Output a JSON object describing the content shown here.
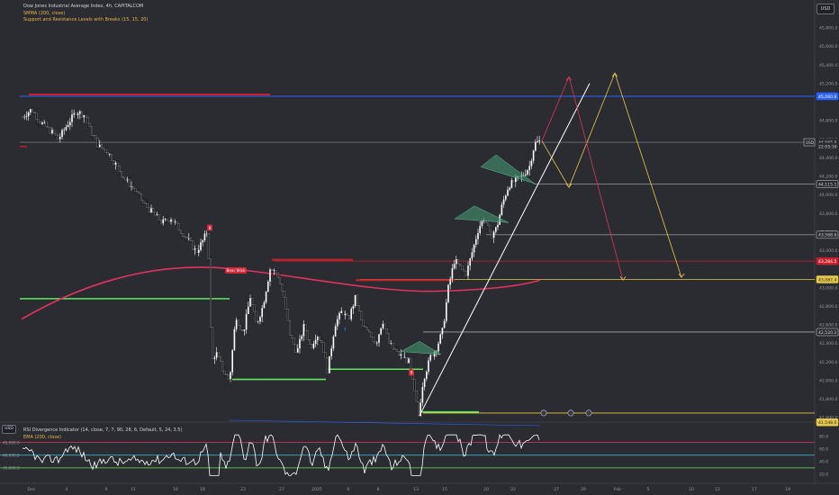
{
  "legend": {
    "symbol": "Dow Jones Industrial Average Index, 4h, CAPITALCOM",
    "indicator_1": "SMMA (200, close)",
    "indicator_2": "Support and Resistance Levels with Breaks (15, 15, 20)"
  },
  "rsi_legend": {
    "indicator_1": "RSI Divergence Indicator (14, close, 7, 7, 90, 28, 6, Default, 5, 24, 3.5)",
    "indicator_2": "EMA (200, close)"
  },
  "currency": "USD",
  "colors": {
    "background": "#2b2c31",
    "candle": "#ffffff",
    "smma": "#e0335e",
    "support": "#5ee85a",
    "resistance": "#c8202c",
    "blue_level": "#2962ff",
    "yellow_projection": "#e5c84a",
    "red_projection": "#e0335e",
    "trendline": "#ffffff",
    "triangle_pattern": "#5aa882"
  },
  "chart_data": {
    "type": "candlestick",
    "price_axis": {
      "ticks": [
        "45,800.0",
        "45,600.0",
        "45,400.0",
        "45,200.0",
        "44,800.0",
        "44,600.0",
        "44,400.0",
        "44,200.0",
        "44,000.0",
        "43,800.0",
        "43,600.0",
        "43,400.0",
        "43,000.0",
        "42,800.0",
        "42,600.0",
        "42,400.0",
        "42,200.0",
        "42,000.0",
        "41,800.0",
        "41,600.0"
      ],
      "ylim": [
        41560,
        46040
      ]
    },
    "time_axis": {
      "ticks": [
        "Dec",
        "4",
        "9",
        "11",
        "16",
        "18",
        "23",
        "27",
        "2025",
        "6",
        "8",
        "13",
        "15",
        "20",
        "22",
        "27",
        "29",
        "Feb",
        "5",
        "10",
        "12",
        "17",
        "19"
      ]
    },
    "price_labels": [
      {
        "text": "45,060.8",
        "value": 45060.8,
        "style": "blue"
      },
      {
        "text": "44,565.8",
        "value": 44565.8,
        "style": "current"
      },
      {
        "text": "22:05:16",
        "value": 44520,
        "style": "current-sub"
      },
      {
        "text": "44,115.1",
        "value": 44115.1,
        "style": "white"
      },
      {
        "text": "43,568.6",
        "value": 43568.6,
        "style": "white"
      },
      {
        "text": "43,284.5",
        "value": 43284.5,
        "style": "red"
      },
      {
        "text": "43,087.4",
        "value": 43087.4,
        "style": "yellow"
      },
      {
        "text": "42,520.2",
        "value": 42520.2,
        "style": "white"
      },
      {
        "text": "41,548.0",
        "value": 41548.0,
        "style": "yellow"
      }
    ],
    "current_price_tag": "USD",
    "signals": [
      {
        "text": "B",
        "x": 233,
        "value": 43640,
        "kind": "break"
      },
      {
        "text": "Bear Wick",
        "x": 262,
        "value": 43180,
        "kind": "break"
      },
      {
        "text": "B",
        "x": 457,
        "value": 42080,
        "kind": "break"
      }
    ],
    "rsi_axis": {
      "ticks": [
        "80.0",
        "60.0",
        "40.0",
        "20.0"
      ],
      "levels": [
        70,
        50,
        30
      ]
    },
    "rsi_left_ticks": [
      "45,000.0",
      "40,000.0",
      "35,000.0"
    ]
  }
}
